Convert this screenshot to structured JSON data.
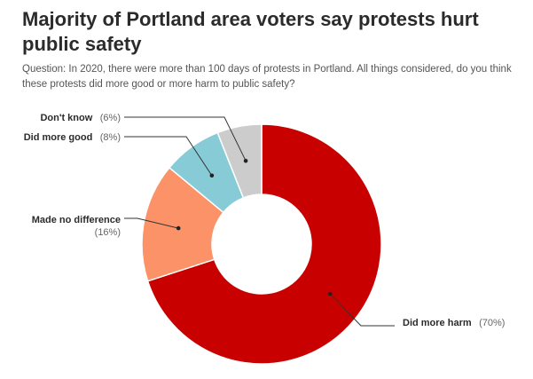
{
  "chart": {
    "title": "Majority of Portland area voters say protests hurt public safety",
    "subtitle": "Question: In 2020, there were more than 100 days of protests in Portland. All things considered, do you think these protests did more good or more harm to public safety?"
  },
  "chart_data": {
    "type": "pie",
    "donut": true,
    "title": "Majority of Portland area voters say protests hurt public safety",
    "subtitle": "Question: In 2020, there were more than 100 days of protests in Portland. All things considered, do you think these protests did more good or more harm to public safety?",
    "slices": [
      {
        "label": "Did more harm",
        "value": 70,
        "value_label": "(70%)",
        "color": "#c80000"
      },
      {
        "label": "Made no difference",
        "value": 16,
        "value_label": "(16%)",
        "color": "#fb9268"
      },
      {
        "label": "Did more good",
        "value": 8,
        "value_label": "(8%)",
        "color": "#86cbd6"
      },
      {
        "label": "Don't know",
        "value": 6,
        "value_label": "(6%)",
        "color": "#cccccc"
      }
    ],
    "legend": "callout labels"
  }
}
